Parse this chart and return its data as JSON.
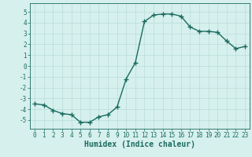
{
  "x": [
    0,
    1,
    2,
    3,
    4,
    5,
    6,
    7,
    8,
    9,
    10,
    11,
    12,
    13,
    14,
    15,
    16,
    17,
    18,
    19,
    20,
    21,
    22,
    23
  ],
  "y": [
    -3.5,
    -3.6,
    -4.1,
    -4.4,
    -4.5,
    -5.2,
    -5.2,
    -4.7,
    -4.5,
    -3.8,
    -1.2,
    0.3,
    4.1,
    4.7,
    4.8,
    4.8,
    4.6,
    3.6,
    3.2,
    3.2,
    3.1,
    2.3,
    1.6,
    1.8
  ],
  "line_color": "#1a6b5e",
  "marker": "+",
  "marker_size": 4,
  "marker_lw": 1.0,
  "bg_color": "#d6f0ee",
  "grid_color": "#b8ddd8",
  "xlim": [
    -0.5,
    23.5
  ],
  "ylim": [
    -5.8,
    5.8
  ],
  "yticks": [
    -5,
    -4,
    -3,
    -2,
    -1,
    0,
    1,
    2,
    3,
    4,
    5
  ],
  "xticks": [
    0,
    1,
    2,
    3,
    4,
    5,
    6,
    7,
    8,
    9,
    10,
    11,
    12,
    13,
    14,
    15,
    16,
    17,
    18,
    19,
    20,
    21,
    22,
    23
  ],
  "xlabel": "Humidex (Indice chaleur)",
  "xlabel_fontsize": 7,
  "tick_fontsize": 5.5,
  "line_width": 1.0
}
